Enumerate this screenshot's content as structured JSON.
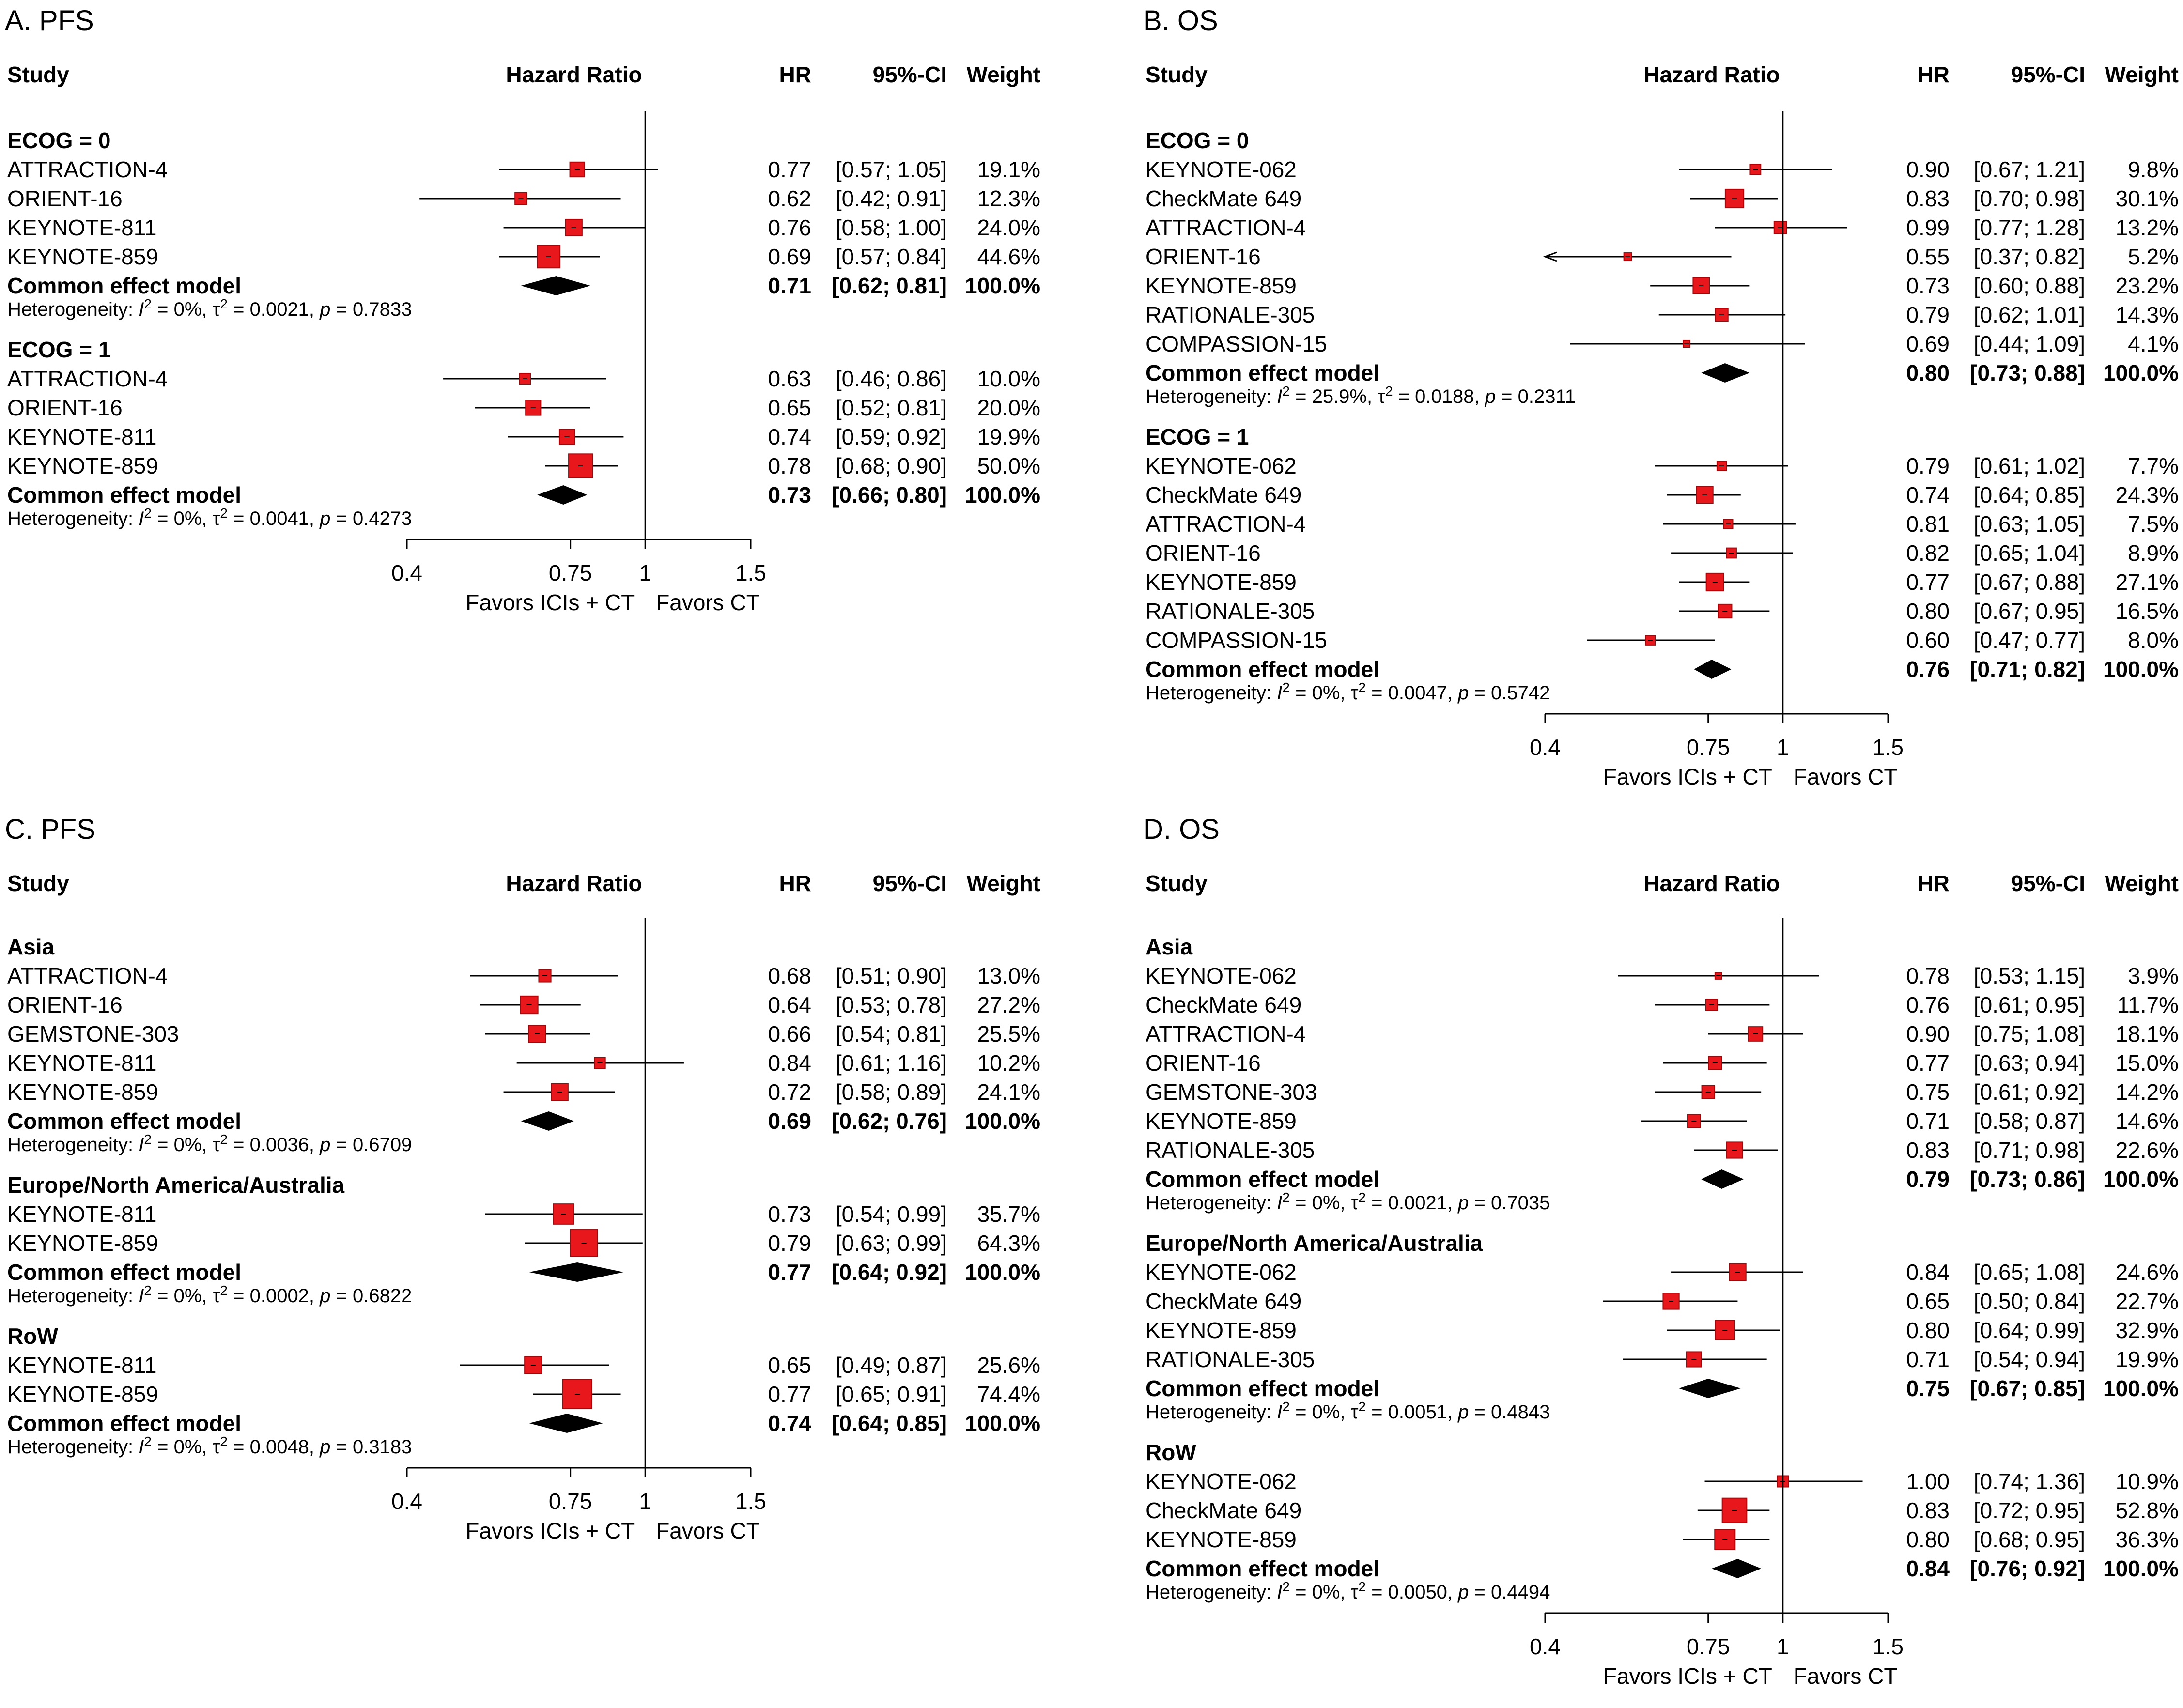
{
  "colors": {
    "square_fill": "#e8171c",
    "square_edge": "#9b0a0d",
    "diamond": "#000000",
    "line": "#000000"
  },
  "headers": {
    "study": "Study",
    "hazard_ratio": "Hazard Ratio",
    "hr": "HR",
    "ci": "95%-CI",
    "weight": "Weight"
  },
  "model_label": "Common effect model",
  "axis": {
    "ticks": [
      0.4,
      0.75,
      1,
      1.5
    ],
    "tick_labels": [
      "0.4",
      "0.75",
      "1",
      "1.5"
    ],
    "left_label": "Favors ICIs + CT",
    "right_label": "Favors CT",
    "scale": "log",
    "reference_line": 1
  },
  "chart_data": [
    {
      "type": "forest",
      "title": "A. PFS",
      "xlim": [
        0.4,
        1.5
      ],
      "subgroups": [
        {
          "name": "ECOG = 0",
          "studies": [
            {
              "study": "ATTRACTION-4",
              "hr": 0.77,
              "lo": 0.57,
              "hi": 1.05,
              "weight": 19.1,
              "hr_text": "0.77",
              "ci_text": "[0.57; 1.05]",
              "weight_text": "19.1%"
            },
            {
              "study": "ORIENT-16",
              "hr": 0.62,
              "lo": 0.42,
              "hi": 0.91,
              "weight": 12.3,
              "hr_text": "0.62",
              "ci_text": "[0.42; 0.91]",
              "weight_text": "12.3%"
            },
            {
              "study": "KEYNOTE-811",
              "hr": 0.76,
              "lo": 0.58,
              "hi": 1.0,
              "weight": 24.0,
              "hr_text": "0.76",
              "ci_text": "[0.58; 1.00]",
              "weight_text": "24.0%"
            },
            {
              "study": "KEYNOTE-859",
              "hr": 0.69,
              "lo": 0.57,
              "hi": 0.84,
              "weight": 44.6,
              "hr_text": "0.69",
              "ci_text": "[0.57; 0.84]",
              "weight_text": "44.6%"
            }
          ],
          "pooled": {
            "hr": 0.71,
            "lo": 0.62,
            "hi": 0.81,
            "hr_text": "0.71",
            "ci_text": "[0.62; 0.81]",
            "weight_text": "100.0%"
          },
          "heterogeneity": {
            "i2": "0%",
            "tau2": "0.0021",
            "p": "0.7833"
          }
        },
        {
          "name": "ECOG = 1",
          "studies": [
            {
              "study": "ATTRACTION-4",
              "hr": 0.63,
              "lo": 0.46,
              "hi": 0.86,
              "weight": 10.0,
              "hr_text": "0.63",
              "ci_text": "[0.46; 0.86]",
              "weight_text": "10.0%"
            },
            {
              "study": "ORIENT-16",
              "hr": 0.65,
              "lo": 0.52,
              "hi": 0.81,
              "weight": 20.0,
              "hr_text": "0.65",
              "ci_text": "[0.52; 0.81]",
              "weight_text": "20.0%"
            },
            {
              "study": "KEYNOTE-811",
              "hr": 0.74,
              "lo": 0.59,
              "hi": 0.92,
              "weight": 19.9,
              "hr_text": "0.74",
              "ci_text": "[0.59; 0.92]",
              "weight_text": "19.9%"
            },
            {
              "study": "KEYNOTE-859",
              "hr": 0.78,
              "lo": 0.68,
              "hi": 0.9,
              "weight": 50.0,
              "hr_text": "0.78",
              "ci_text": "[0.68; 0.90]",
              "weight_text": "50.0%"
            }
          ],
          "pooled": {
            "hr": 0.73,
            "lo": 0.66,
            "hi": 0.8,
            "hr_text": "0.73",
            "ci_text": "[0.66; 0.80]",
            "weight_text": "100.0%"
          },
          "heterogeneity": {
            "i2": "0%",
            "tau2": "0.0041",
            "p": "0.4273"
          }
        }
      ]
    },
    {
      "type": "forest",
      "title": "B. OS",
      "xlim": [
        0.4,
        1.5
      ],
      "subgroups": [
        {
          "name": "ECOG = 0",
          "studies": [
            {
              "study": "KEYNOTE-062",
              "hr": 0.9,
              "lo": 0.67,
              "hi": 1.21,
              "weight": 9.8,
              "hr_text": "0.90",
              "ci_text": "[0.67; 1.21]",
              "weight_text": "9.8%"
            },
            {
              "study": "CheckMate 649",
              "hr": 0.83,
              "lo": 0.7,
              "hi": 0.98,
              "weight": 30.1,
              "hr_text": "0.83",
              "ci_text": "[0.70; 0.98]",
              "weight_text": "30.1%"
            },
            {
              "study": "ATTRACTION-4",
              "hr": 0.99,
              "lo": 0.77,
              "hi": 1.28,
              "weight": 13.2,
              "hr_text": "0.99",
              "ci_text": "[0.77; 1.28]",
              "weight_text": "13.2%"
            },
            {
              "study": "ORIENT-16",
              "hr": 0.55,
              "lo": 0.37,
              "hi": 0.82,
              "weight": 5.2,
              "hr_text": "0.55",
              "ci_text": "[0.37; 0.82]",
              "weight_text": "5.2%"
            },
            {
              "study": "KEYNOTE-859",
              "hr": 0.73,
              "lo": 0.6,
              "hi": 0.88,
              "weight": 23.2,
              "hr_text": "0.73",
              "ci_text": "[0.60; 0.88]",
              "weight_text": "23.2%"
            },
            {
              "study": "RATIONALE-305",
              "hr": 0.79,
              "lo": 0.62,
              "hi": 1.01,
              "weight": 14.3,
              "hr_text": "0.79",
              "ci_text": "[0.62; 1.01]",
              "weight_text": "14.3%"
            },
            {
              "study": "COMPASSION-15",
              "hr": 0.69,
              "lo": 0.44,
              "hi": 1.09,
              "weight": 4.1,
              "hr_text": "0.69",
              "ci_text": "[0.44; 1.09]",
              "weight_text": "4.1%"
            }
          ],
          "pooled": {
            "hr": 0.8,
            "lo": 0.73,
            "hi": 0.88,
            "hr_text": "0.80",
            "ci_text": "[0.73; 0.88]",
            "weight_text": "100.0%"
          },
          "heterogeneity": {
            "i2": "25.9%",
            "tau2": "0.0188",
            "p": "0.2311"
          }
        },
        {
          "name": "ECOG = 1",
          "studies": [
            {
              "study": "KEYNOTE-062",
              "hr": 0.79,
              "lo": 0.61,
              "hi": 1.02,
              "weight": 7.7,
              "hr_text": "0.79",
              "ci_text": "[0.61; 1.02]",
              "weight_text": "7.7%"
            },
            {
              "study": "CheckMate 649",
              "hr": 0.74,
              "lo": 0.64,
              "hi": 0.85,
              "weight": 24.3,
              "hr_text": "0.74",
              "ci_text": "[0.64; 0.85]",
              "weight_text": "24.3%"
            },
            {
              "study": "ATTRACTION-4",
              "hr": 0.81,
              "lo": 0.63,
              "hi": 1.05,
              "weight": 7.5,
              "hr_text": "0.81",
              "ci_text": "[0.63; 1.05]",
              "weight_text": "7.5%"
            },
            {
              "study": "ORIENT-16",
              "hr": 0.82,
              "lo": 0.65,
              "hi": 1.04,
              "weight": 8.9,
              "hr_text": "0.82",
              "ci_text": "[0.65; 1.04]",
              "weight_text": "8.9%"
            },
            {
              "study": "KEYNOTE-859",
              "hr": 0.77,
              "lo": 0.67,
              "hi": 0.88,
              "weight": 27.1,
              "hr_text": "0.77",
              "ci_text": "[0.67; 0.88]",
              "weight_text": "27.1%"
            },
            {
              "study": "RATIONALE-305",
              "hr": 0.8,
              "lo": 0.67,
              "hi": 0.95,
              "weight": 16.5,
              "hr_text": "0.80",
              "ci_text": "[0.67; 0.95]",
              "weight_text": "16.5%"
            },
            {
              "study": "COMPASSION-15",
              "hr": 0.6,
              "lo": 0.47,
              "hi": 0.77,
              "weight": 8.0,
              "hr_text": "0.60",
              "ci_text": "[0.47; 0.77]",
              "weight_text": "8.0%"
            }
          ],
          "pooled": {
            "hr": 0.76,
            "lo": 0.71,
            "hi": 0.82,
            "hr_text": "0.76",
            "ci_text": "[0.71; 0.82]",
            "weight_text": "100.0%"
          },
          "heterogeneity": {
            "i2": "0%",
            "tau2": "0.0047",
            "p": "0.5742"
          }
        }
      ]
    },
    {
      "type": "forest",
      "title": "C. PFS",
      "xlim": [
        0.4,
        1.5
      ],
      "subgroups": [
        {
          "name": "Asia",
          "studies": [
            {
              "study": "ATTRACTION-4",
              "hr": 0.68,
              "lo": 0.51,
              "hi": 0.9,
              "weight": 13.0,
              "hr_text": "0.68",
              "ci_text": "[0.51; 0.90]",
              "weight_text": "13.0%"
            },
            {
              "study": "ORIENT-16",
              "hr": 0.64,
              "lo": 0.53,
              "hi": 0.78,
              "weight": 27.2,
              "hr_text": "0.64",
              "ci_text": "[0.53; 0.78]",
              "weight_text": "27.2%"
            },
            {
              "study": "GEMSTONE-303",
              "hr": 0.66,
              "lo": 0.54,
              "hi": 0.81,
              "weight": 25.5,
              "hr_text": "0.66",
              "ci_text": "[0.54; 0.81]",
              "weight_text": "25.5%"
            },
            {
              "study": "KEYNOTE-811",
              "hr": 0.84,
              "lo": 0.61,
              "hi": 1.16,
              "weight": 10.2,
              "hr_text": "0.84",
              "ci_text": "[0.61; 1.16]",
              "weight_text": "10.2%"
            },
            {
              "study": "KEYNOTE-859",
              "hr": 0.72,
              "lo": 0.58,
              "hi": 0.89,
              "weight": 24.1,
              "hr_text": "0.72",
              "ci_text": "[0.58; 0.89]",
              "weight_text": "24.1%"
            }
          ],
          "pooled": {
            "hr": 0.69,
            "lo": 0.62,
            "hi": 0.76,
            "hr_text": "0.69",
            "ci_text": "[0.62; 0.76]",
            "weight_text": "100.0%"
          },
          "heterogeneity": {
            "i2": "0%",
            "tau2": "0.0036",
            "p": "0.6709"
          }
        },
        {
          "name": "Europe/North America/Australia",
          "studies": [
            {
              "study": "KEYNOTE-811",
              "hr": 0.73,
              "lo": 0.54,
              "hi": 0.99,
              "weight": 35.7,
              "hr_text": "0.73",
              "ci_text": "[0.54; 0.99]",
              "weight_text": "35.7%"
            },
            {
              "study": "KEYNOTE-859",
              "hr": 0.79,
              "lo": 0.63,
              "hi": 0.99,
              "weight": 64.3,
              "hr_text": "0.79",
              "ci_text": "[0.63; 0.99]",
              "weight_text": "64.3%"
            }
          ],
          "pooled": {
            "hr": 0.77,
            "lo": 0.64,
            "hi": 0.92,
            "hr_text": "0.77",
            "ci_text": "[0.64; 0.92]",
            "weight_text": "100.0%"
          },
          "heterogeneity": {
            "i2": "0%",
            "tau2": "0.0002",
            "p": "0.6822"
          }
        },
        {
          "name": "RoW",
          "studies": [
            {
              "study": "KEYNOTE-811",
              "hr": 0.65,
              "lo": 0.49,
              "hi": 0.87,
              "weight": 25.6,
              "hr_text": "0.65",
              "ci_text": "[0.49; 0.87]",
              "weight_text": "25.6%"
            },
            {
              "study": "KEYNOTE-859",
              "hr": 0.77,
              "lo": 0.65,
              "hi": 0.91,
              "weight": 74.4,
              "hr_text": "0.77",
              "ci_text": "[0.65; 0.91]",
              "weight_text": "74.4%"
            }
          ],
          "pooled": {
            "hr": 0.74,
            "lo": 0.64,
            "hi": 0.85,
            "hr_text": "0.74",
            "ci_text": "[0.64; 0.85]",
            "weight_text": "100.0%"
          },
          "heterogeneity": {
            "i2": "0%",
            "tau2": "0.0048",
            "p": "0.3183"
          }
        }
      ]
    },
    {
      "type": "forest",
      "title": "D. OS",
      "xlim": [
        0.4,
        1.5
      ],
      "subgroups": [
        {
          "name": "Asia",
          "studies": [
            {
              "study": "KEYNOTE-062",
              "hr": 0.78,
              "lo": 0.53,
              "hi": 1.15,
              "weight": 3.9,
              "hr_text": "0.78",
              "ci_text": "[0.53; 1.15]",
              "weight_text": "3.9%"
            },
            {
              "study": "CheckMate 649",
              "hr": 0.76,
              "lo": 0.61,
              "hi": 0.95,
              "weight": 11.7,
              "hr_text": "0.76",
              "ci_text": "[0.61; 0.95]",
              "weight_text": "11.7%"
            },
            {
              "study": "ATTRACTION-4",
              "hr": 0.9,
              "lo": 0.75,
              "hi": 1.08,
              "weight": 18.1,
              "hr_text": "0.90",
              "ci_text": "[0.75; 1.08]",
              "weight_text": "18.1%"
            },
            {
              "study": "ORIENT-16",
              "hr": 0.77,
              "lo": 0.63,
              "hi": 0.94,
              "weight": 15.0,
              "hr_text": "0.77",
              "ci_text": "[0.63; 0.94]",
              "weight_text": "15.0%"
            },
            {
              "study": "GEMSTONE-303",
              "hr": 0.75,
              "lo": 0.61,
              "hi": 0.92,
              "weight": 14.2,
              "hr_text": "0.75",
              "ci_text": "[0.61; 0.92]",
              "weight_text": "14.2%"
            },
            {
              "study": "KEYNOTE-859",
              "hr": 0.71,
              "lo": 0.58,
              "hi": 0.87,
              "weight": 14.6,
              "hr_text": "0.71",
              "ci_text": "[0.58; 0.87]",
              "weight_text": "14.6%"
            },
            {
              "study": "RATIONALE-305",
              "hr": 0.83,
              "lo": 0.71,
              "hi": 0.98,
              "weight": 22.6,
              "hr_text": "0.83",
              "ci_text": "[0.71; 0.98]",
              "weight_text": "22.6%"
            }
          ],
          "pooled": {
            "hr": 0.79,
            "lo": 0.73,
            "hi": 0.86,
            "hr_text": "0.79",
            "ci_text": "[0.73; 0.86]",
            "weight_text": "100.0%"
          },
          "heterogeneity": {
            "i2": "0%",
            "tau2": "0.0021",
            "p": "0.7035"
          }
        },
        {
          "name": "Europe/North America/Australia",
          "studies": [
            {
              "study": "KEYNOTE-062",
              "hr": 0.84,
              "lo": 0.65,
              "hi": 1.08,
              "weight": 24.6,
              "hr_text": "0.84",
              "ci_text": "[0.65; 1.08]",
              "weight_text": "24.6%"
            },
            {
              "study": "CheckMate 649",
              "hr": 0.65,
              "lo": 0.5,
              "hi": 0.84,
              "weight": 22.7,
              "hr_text": "0.65",
              "ci_text": "[0.50; 0.84]",
              "weight_text": "22.7%"
            },
            {
              "study": "KEYNOTE-859",
              "hr": 0.8,
              "lo": 0.64,
              "hi": 0.99,
              "weight": 32.9,
              "hr_text": "0.80",
              "ci_text": "[0.64; 0.99]",
              "weight_text": "32.9%"
            },
            {
              "study": "RATIONALE-305",
              "hr": 0.71,
              "lo": 0.54,
              "hi": 0.94,
              "weight": 19.9,
              "hr_text": "0.71",
              "ci_text": "[0.54; 0.94]",
              "weight_text": "19.9%"
            }
          ],
          "pooled": {
            "hr": 0.75,
            "lo": 0.67,
            "hi": 0.85,
            "hr_text": "0.75",
            "ci_text": "[0.67; 0.85]",
            "weight_text": "100.0%"
          },
          "heterogeneity": {
            "i2": "0%",
            "tau2": "0.0051",
            "p": "0.4843"
          }
        },
        {
          "name": "RoW",
          "studies": [
            {
              "study": "KEYNOTE-062",
              "hr": 1.0,
              "lo": 0.74,
              "hi": 1.36,
              "weight": 10.9,
              "hr_text": "1.00",
              "ci_text": "[0.74; 1.36]",
              "weight_text": "10.9%"
            },
            {
              "study": "CheckMate 649",
              "hr": 0.83,
              "lo": 0.72,
              "hi": 0.95,
              "weight": 52.8,
              "hr_text": "0.83",
              "ci_text": "[0.72; 0.95]",
              "weight_text": "52.8%"
            },
            {
              "study": "KEYNOTE-859",
              "hr": 0.8,
              "lo": 0.68,
              "hi": 0.95,
              "weight": 36.3,
              "hr_text": "0.80",
              "ci_text": "[0.68; 0.95]",
              "weight_text": "36.3%"
            }
          ],
          "pooled": {
            "hr": 0.84,
            "lo": 0.76,
            "hi": 0.92,
            "hr_text": "0.84",
            "ci_text": "[0.76; 0.92]",
            "weight_text": "100.0%"
          },
          "heterogeneity": {
            "i2": "0%",
            "tau2": "0.0050",
            "p": "0.4494"
          }
        }
      ]
    }
  ]
}
